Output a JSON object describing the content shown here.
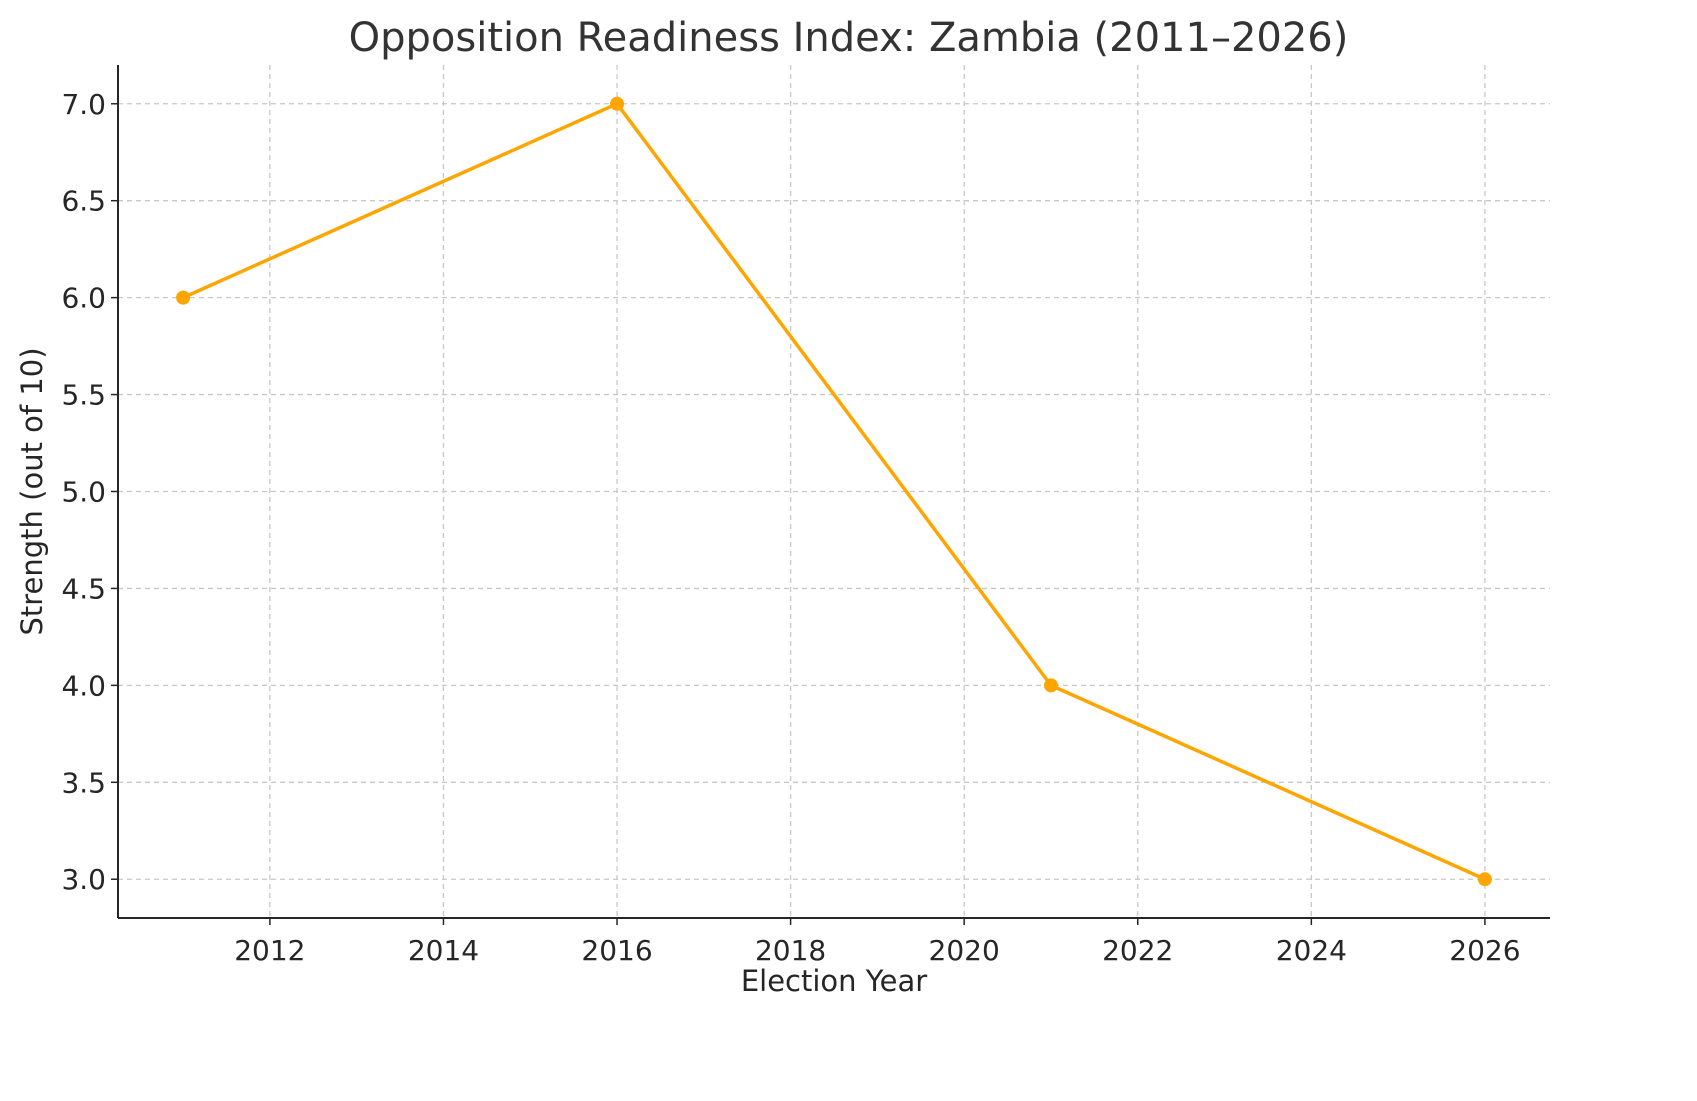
{
  "chart_data": {
    "type": "line",
    "title": "Opposition Readiness Index: Zambia (2011–2026)",
    "xlabel": "Election Year",
    "ylabel": "Strength (out of 10)",
    "x": [
      2011,
      2016,
      2021,
      2026
    ],
    "series": [
      {
        "values": [
          6,
          7,
          4,
          3
        ],
        "color": "#FFA500"
      }
    ],
    "xlim": [
      2010.25,
      2026.75
    ],
    "ylim": [
      2.8,
      7.2
    ],
    "xticks": [
      2012,
      2014,
      2016,
      2018,
      2020,
      2022,
      2024,
      2026
    ],
    "yticks": [
      3.0,
      3.5,
      4.0,
      4.5,
      5.0,
      5.5,
      6.0,
      6.5,
      7.0
    ],
    "ytick_labels": [
      "3.0",
      "3.5",
      "4.0",
      "4.5",
      "5.0",
      "5.5",
      "6.0",
      "6.5",
      "7.0"
    ],
    "grid": true,
    "grid_color": "#c8c8c8",
    "markers": true,
    "legend": "none"
  }
}
